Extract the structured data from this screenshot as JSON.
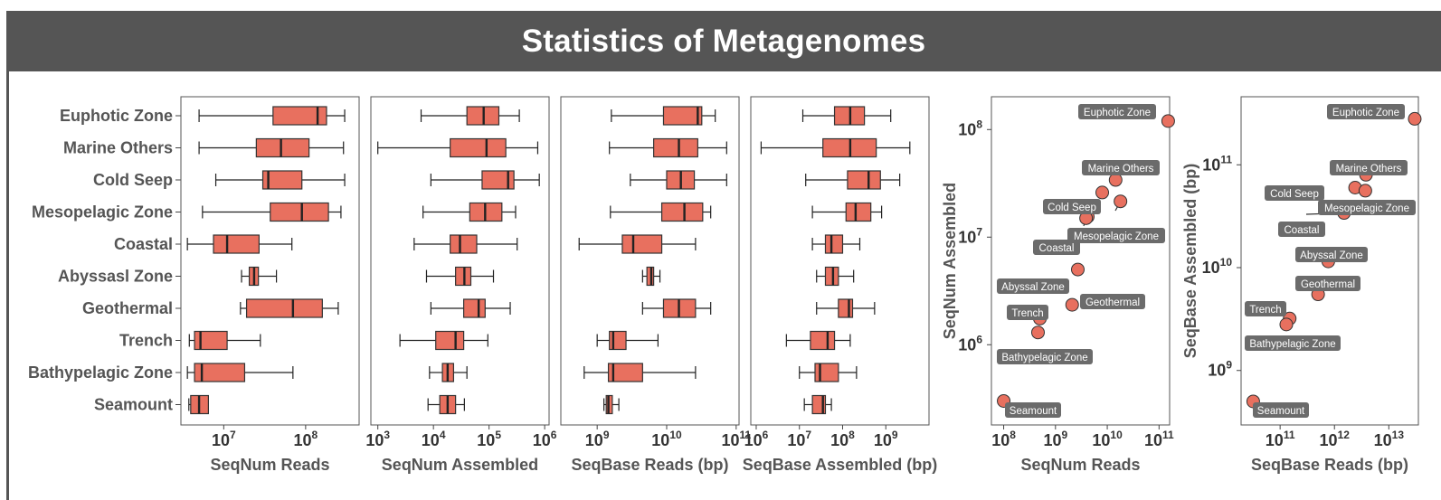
{
  "title": "Statistics of Metagenomes",
  "colors": {
    "header": "#555555",
    "box": "#e8705f",
    "point": "#e8705f",
    "label_bg": "#6b6b6b"
  },
  "chart_data": [
    {
      "type": "boxplot",
      "xlabel": "SeqNum Reads",
      "xscale": "log",
      "xlim": [
        3000000.0,
        450000000.0
      ],
      "xticks": [
        {
          "value": 10000000.0,
          "base": "10",
          "exp": "7"
        },
        {
          "value": 100000000.0,
          "base": "10",
          "exp": "8"
        }
      ],
      "categories": [
        "Euphotic Zone",
        "Marine Others",
        "Cold Seep",
        "Mesopelagic Zone",
        "Coastal",
        "Abyssasl Zone",
        "Geothermal",
        "Trench",
        "Bathypelagic Zone",
        "Seamount"
      ],
      "boxes": [
        {
          "min": 5000000.0,
          "q1": 40000000.0,
          "median": 140000000.0,
          "q3": 180000000.0,
          "max": 300000000.0
        },
        {
          "min": 5000000.0,
          "q1": 25000000.0,
          "median": 50000000.0,
          "q3": 110000000.0,
          "max": 290000000.0
        },
        {
          "min": 8000000.0,
          "q1": 30000000.0,
          "median": 35000000.0,
          "q3": 90000000.0,
          "max": 300000000.0
        },
        {
          "min": 5500000.0,
          "q1": 37000000.0,
          "median": 90000000.0,
          "q3": 190000000.0,
          "max": 270000000.0
        },
        {
          "min": 3600000.0,
          "q1": 7500000.0,
          "median": 11000000.0,
          "q3": 27000000.0,
          "max": 68000000.0
        },
        {
          "min": 16500000.0,
          "q1": 20500000.0,
          "median": 23500000.0,
          "q3": 26500000.0,
          "max": 44000000.0
        },
        {
          "min": 16000000.0,
          "q1": 19000000.0,
          "median": 70000000.0,
          "q3": 160000000.0,
          "max": 250000000.0
        },
        {
          "min": 3800000.0,
          "q1": 4400000.0,
          "median": 5200000.0,
          "q3": 11000000.0,
          "max": 28000000.0
        },
        {
          "min": 3600000.0,
          "q1": 4400000.0,
          "median": 5400000.0,
          "q3": 18000000.0,
          "max": 70000000.0
        },
        {
          "min": 3750000.0,
          "q1": 3950000.0,
          "median": 5000000.0,
          "q3": 6500000.0,
          "max": 6500000.0
        }
      ]
    },
    {
      "type": "boxplot",
      "xlabel": "SeqNum Assembled",
      "xscale": "log",
      "xlim": [
        750.0,
        1200000.0
      ],
      "xticks": [
        {
          "value": 1000.0,
          "base": "10",
          "exp": "3"
        },
        {
          "value": 10000.0,
          "base": "10",
          "exp": "4"
        },
        {
          "value": 100000.0,
          "base": "10",
          "exp": "5"
        },
        {
          "value": 1000000.0,
          "base": "10",
          "exp": "6"
        }
      ],
      "categories": [
        "Euphotic Zone",
        "Marine Others",
        "Cold Seep",
        "Mesopelagic Zone",
        "Coastal",
        "Abyssasl Zone",
        "Geothermal",
        "Trench",
        "Bathypelagic Zone",
        "Seamount"
      ],
      "boxes": [
        {
          "min": 6000.0,
          "q1": 40000.0,
          "median": 80000.0,
          "q3": 150000.0,
          "max": 350000.0
        },
        {
          "min": 1000.0,
          "q1": 20000.0,
          "median": 90000.0,
          "q3": 200000.0,
          "max": 750000.0
        },
        {
          "min": 9000.0,
          "q1": 75000.0,
          "median": 220000.0,
          "q3": 280000.0,
          "max": 800000.0
        },
        {
          "min": 6500.0,
          "q1": 45000.0,
          "median": 85000.0,
          "q3": 170000.0,
          "max": 300000.0
        },
        {
          "min": 4500.0,
          "q1": 20000.0,
          "median": 30000.0,
          "q3": 60000.0,
          "max": 320000.0
        },
        {
          "min": 7500.0,
          "q1": 25000.0,
          "median": 36000.0,
          "q3": 47000.0,
          "max": 120000.0
        },
        {
          "min": 9000.0,
          "q1": 35000.0,
          "median": 65000.0,
          "q3": 85000.0,
          "max": 240000.0
        },
        {
          "min": 2500.0,
          "q1": 11000.0,
          "median": 25000.0,
          "q3": 35000.0,
          "max": 95000.0
        },
        {
          "min": 8500.0,
          "q1": 14500.0,
          "median": 18000.0,
          "q3": 23000.0,
          "max": 40000.0
        },
        {
          "min": 8000.0,
          "q1": 13000.0,
          "median": 18000.0,
          "q3": 25000.0,
          "max": 36000.0
        }
      ]
    },
    {
      "type": "boxplot",
      "xlabel": "SeqBase Reads (bp)",
      "xscale": "log",
      "xlim": [
        300000000.0,
        110000000000.0
      ],
      "xticks": [
        {
          "value": 1000000000.0,
          "base": "10",
          "exp": "9"
        },
        {
          "value": 10000000000.0,
          "base": "10",
          "exp": "10"
        },
        {
          "value": 100000000000.0,
          "base": "10",
          "exp": "11"
        }
      ],
      "categories": [
        "Euphotic Zone",
        "Marine Others",
        "Cold Seep",
        "Mesopelagic Zone",
        "Coastal",
        "Abyssasl Zone",
        "Geothermal",
        "Trench",
        "Bathypelagic Zone",
        "Seamount"
      ],
      "boxes": [
        {
          "min": 1600000000.0,
          "q1": 9000000000.0,
          "median": 28000000000.0,
          "q3": 32000000000.0,
          "max": 50000000000.0
        },
        {
          "min": 1500000000.0,
          "q1": 6500000000.0,
          "median": 15000000000.0,
          "q3": 28000000000.0,
          "max": 73000000000.0
        },
        {
          "min": 3000000000.0,
          "q1": 10000000000.0,
          "median": 16000000000.0,
          "q3": 25000000000.0,
          "max": 73000000000.0
        },
        {
          "min": 1550000000.0,
          "q1": 8500000000.0,
          "median": 18000000000.0,
          "q3": 33000000000.0,
          "max": 43000000000.0
        },
        {
          "min": 550000000.0,
          "q1": 2300000000.0,
          "median": 3300000000.0,
          "q3": 8500000000.0,
          "max": 26000000000.0
        },
        {
          "min": 4500000000.0,
          "q1": 5200000000.0,
          "median": 6000000000.0,
          "q3": 6500000000.0,
          "max": 8000000000.0
        },
        {
          "min": 4500000000.0,
          "q1": 9000000000.0,
          "median": 15000000000.0,
          "q3": 26000000000.0,
          "max": 43000000000.0
        },
        {
          "min": 1000000000.0,
          "q1": 1500000000.0,
          "median": 1700000000.0,
          "q3": 2600000000.0,
          "max": 7500000000.0
        },
        {
          "min": 650000000.0,
          "q1": 1450000000.0,
          "median": 1700000000.0,
          "q3": 4500000000.0,
          "max": 26000000000.0
        },
        {
          "min": 1250000000.0,
          "q1": 1350000000.0,
          "median": 1450000000.0,
          "q3": 1650000000.0,
          "max": 2050000000.0
        }
      ]
    },
    {
      "type": "boxplot",
      "xlabel": "SeqBase Assembled (bp)",
      "xscale": "log",
      "xlim": [
        750000.0,
        10000000000.0
      ],
      "xticks": [
        {
          "value": 1000000.0,
          "base": "10",
          "exp": "6"
        },
        {
          "value": 10000000.0,
          "base": "10",
          "exp": "7"
        },
        {
          "value": 100000000.0,
          "base": "10",
          "exp": "8"
        },
        {
          "value": 1000000000.0,
          "base": "10",
          "exp": "9"
        }
      ],
      "categories": [
        "Euphotic Zone",
        "Marine Others",
        "Cold Seep",
        "Mesopelagic Zone",
        "Coastal",
        "Abyssasl Zone",
        "Geothermal",
        "Trench",
        "Bathypelagic Zone",
        "Seamount"
      ],
      "boxes": [
        {
          "min": 12000000.0,
          "q1": 65000000.0,
          "median": 150000000.0,
          "q3": 320000000.0,
          "max": 1300000000.0
        },
        {
          "min": 1300000.0,
          "q1": 35000000.0,
          "median": 150000000.0,
          "q3": 600000000.0,
          "max": 3600000000.0
        },
        {
          "min": 14000000.0,
          "q1": 130000000.0,
          "median": 400000000.0,
          "q3": 750000000.0,
          "max": 2100000000.0
        },
        {
          "min": 20000000.0,
          "q1": 120000000.0,
          "median": 200000000.0,
          "q3": 450000000.0,
          "max": 800000000.0
        },
        {
          "min": 20000000.0,
          "q1": 40000000.0,
          "median": 55000000.0,
          "q3": 100000000.0,
          "max": 250000000.0
        },
        {
          "min": 25000000.0,
          "q1": 40000000.0,
          "median": 60000000.0,
          "q3": 80000000.0,
          "max": 180000000.0
        },
        {
          "min": 25000000.0,
          "q1": 80000000.0,
          "median": 140000000.0,
          "q3": 170000000.0,
          "max": 550000000.0
        },
        {
          "min": 5000000.0,
          "q1": 18000000.0,
          "median": 45000000.0,
          "q3": 65000000.0,
          "max": 150000000.0
        },
        {
          "min": 10000000.0,
          "q1": 23000000.0,
          "median": 30000000.0,
          "q3": 80000000.0,
          "max": 210000000.0
        },
        {
          "min": 13000000.0,
          "q1": 20000000.0,
          "median": 35000000.0,
          "q3": 40000000.0,
          "max": 55000000.0
        }
      ]
    },
    {
      "type": "scatter",
      "xlabel": "SeqNum Reads",
      "ylabel": "SeqNum Assembled",
      "xscale": "log",
      "yscale": "log",
      "xlim": [
        80000000.0,
        160000000000.0
      ],
      "ylim": [
        240000.0,
        160000000.0
      ],
      "xticks": [
        {
          "value": 100000000.0,
          "base": "10",
          "exp": "8"
        },
        {
          "value": 1000000000.0,
          "base": "10",
          "exp": "9"
        },
        {
          "value": 10000000000.0,
          "base": "10",
          "exp": "10"
        },
        {
          "value": 100000000000.0,
          "base": "10",
          "exp": "11"
        }
      ],
      "yticks": [
        {
          "value": 1000000.0,
          "base": "10",
          "exp": "6"
        },
        {
          "value": 10000000.0,
          "base": "10",
          "exp": "7"
        },
        {
          "value": 100000000.0,
          "base": "10",
          "exp": "8"
        }
      ],
      "points": [
        {
          "label": "Euphotic Zone",
          "x": 150000000000.0,
          "y": 120000000.0
        },
        {
          "label": "Marine Others",
          "x": 14500000000.0,
          "y": 34000000.0
        },
        {
          "label": "",
          "x": 8000000000.0,
          "y": 26000000.0
        },
        {
          "label": "Cold Seep",
          "x": 4200000000.0,
          "y": 15500000.0
        },
        {
          "label": "Mesopelagic Zone",
          "x": 18000000000.0,
          "y": 21500000.0
        },
        {
          "label": "Coastal",
          "x": 3900000000.0,
          "y": 15000000.0
        },
        {
          "label": "Abyssal Zone",
          "x": 2700000000.0,
          "y": 5000000.0
        },
        {
          "label": "Geothermal",
          "x": 2100000000.0,
          "y": 2350000.0
        },
        {
          "label": "Trench",
          "x": 500000000.0,
          "y": 1750000.0
        },
        {
          "label": "Bathypelagic Zone",
          "x": 460000000.0,
          "y": 1300000.0
        },
        {
          "label": "Seamount",
          "x": 100000000.0,
          "y": 300000.0
        }
      ],
      "labels": [
        {
          "text": "Euphotic Zone",
          "point": 0
        },
        {
          "text": "Marine Others",
          "point": 1
        },
        {
          "text": "Cold Seep",
          "point": 3
        },
        {
          "text": "Mesopelagic Zone",
          "point": 4
        },
        {
          "text": "Coastal",
          "point": 5
        },
        {
          "text": "Abyssal Zone",
          "point": 6
        },
        {
          "text": "Geothermal",
          "point": 7
        },
        {
          "text": "Trench",
          "point": 8
        },
        {
          "text": "Bathypelagic Zone",
          "point": 9
        },
        {
          "text": "Seamount",
          "point": 10
        }
      ]
    },
    {
      "type": "scatter",
      "xlabel": "SeqBase Reads (bp)",
      "ylabel": "SeqBase Assembled (bp)",
      "xscale": "log",
      "yscale": "log",
      "xlim": [
        26000000000.0,
        35000000000000.0
      ],
      "ylim": [
        400000000.0,
        360000000000.0
      ],
      "xticks": [
        {
          "value": 100000000000.0,
          "base": "10",
          "exp": "11"
        },
        {
          "value": 1000000000000.0,
          "base": "10",
          "exp": "12"
        },
        {
          "value": 10000000000000.0,
          "base": "10",
          "exp": "13"
        }
      ],
      "yticks": [
        {
          "value": 1000000000.0,
          "base": "10",
          "exp": "9"
        },
        {
          "value": 10000000000.0,
          "base": "10",
          "exp": "10"
        },
        {
          "value": 100000000000.0,
          "base": "10",
          "exp": "11"
        }
      ],
      "points": [
        {
          "label": "Euphotic Zone",
          "x": 30000000000000.0,
          "y": 280000000000.0
        },
        {
          "label": "Marine Others",
          "x": 3800000000000.0,
          "y": 80000000000.0
        },
        {
          "label": "Cold Seep",
          "x": 2400000000000.0,
          "y": 60000000000.0
        },
        {
          "label": "",
          "x": 3700000000000.0,
          "y": 56000000000.0
        },
        {
          "label": "Mesopelagic Zone",
          "x": 1600000000000.0,
          "y": 37000000000.0
        },
        {
          "label": "Coastal",
          "x": 1500000000000.0,
          "y": 34000000000.0
        },
        {
          "label": "Abyssal Zone",
          "x": 770000000000.0,
          "y": 11500000000.0
        },
        {
          "label": "Geothermal",
          "x": 500000000000.0,
          "y": 5500000000.0
        },
        {
          "label": "Trench",
          "x": 150000000000.0,
          "y": 3200000000.0
        },
        {
          "label": "Bathypelagic Zone",
          "x": 130000000000.0,
          "y": 2800000000.0
        },
        {
          "label": "Seamount",
          "x": 32000000000.0,
          "y": 500000000.0
        }
      ],
      "labels": [
        {
          "text": "Euphotic Zone",
          "point": 0
        },
        {
          "text": "Marine Others",
          "point": 1
        },
        {
          "text": "Cold Seep",
          "point": 2
        },
        {
          "text": "Mesopelagic Zone",
          "point": 4
        },
        {
          "text": "Coastal",
          "point": 5
        },
        {
          "text": "Abyssal Zone",
          "point": 6
        },
        {
          "text": "Geothermal",
          "point": 7
        },
        {
          "text": "Trench",
          "point": 8
        },
        {
          "text": "Bathypelagic Zone",
          "point": 9
        },
        {
          "text": "Seamount",
          "point": 10
        }
      ]
    }
  ]
}
